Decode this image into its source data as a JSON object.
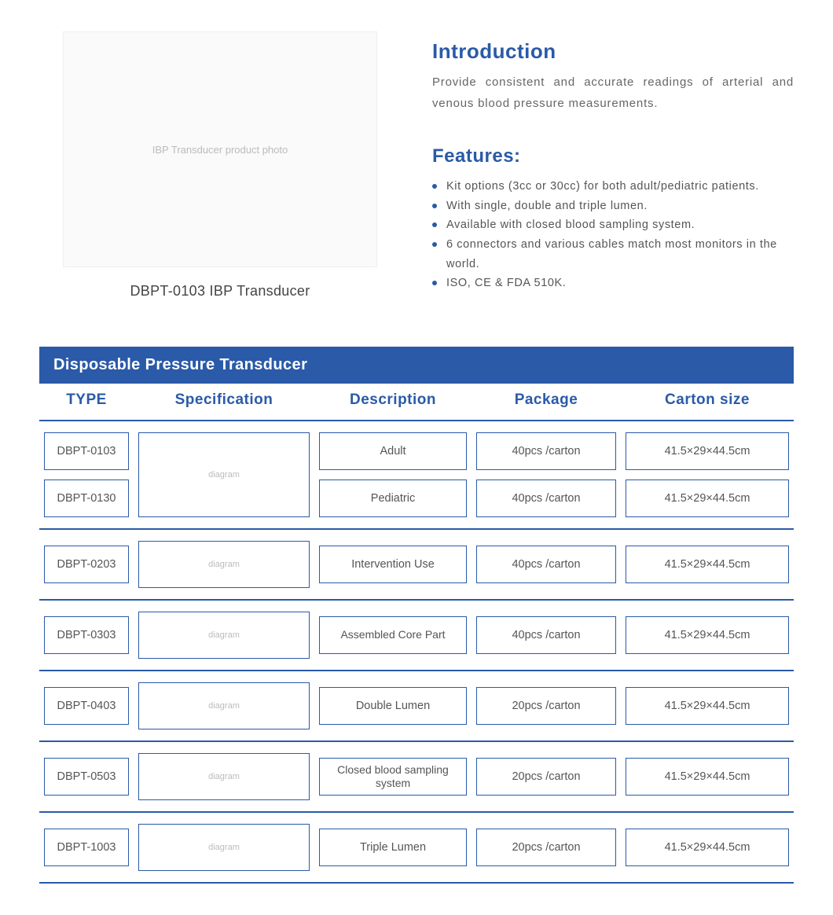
{
  "product": {
    "caption": "DBPT-0103 IBP Transducer",
    "image_alt": "IBP Transducer product photo"
  },
  "intro": {
    "heading": "Introduction",
    "body": "Provide consistent and accurate readings of arterial and venous blood pressure measurements."
  },
  "features": {
    "heading": "Features:",
    "items": [
      "Kit options (3cc or 30cc) for both adult/pediatric patients.",
      "With single, double and triple lumen.",
      "Available with closed blood sampling system.",
      "6 connectors and various cables match most monitors in the world.",
      "ISO, CE & FDA 510K."
    ]
  },
  "table": {
    "banner": "Disposable Pressure Transducer",
    "headers": {
      "type": "TYPE",
      "spec": "Specification",
      "desc": "Description",
      "package": "Package",
      "carton": "Carton  size"
    },
    "groups": [
      {
        "types": [
          "DBPT-0103",
          "DBPT-0130"
        ],
        "spec_alt": "diagram",
        "rows": [
          {
            "desc": "Adult",
            "package": "40pcs /carton",
            "carton": "41.5×29×44.5cm"
          },
          {
            "desc": "Pediatric",
            "package": "40pcs /carton",
            "carton": "41.5×29×44.5cm"
          }
        ]
      },
      {
        "types": [
          "DBPT-0203"
        ],
        "spec_alt": "diagram",
        "rows": [
          {
            "desc": "Intervention Use",
            "package": "40pcs /carton",
            "carton": "41.5×29×44.5cm"
          }
        ]
      },
      {
        "types": [
          "DBPT-0303"
        ],
        "spec_alt": "diagram",
        "rows": [
          {
            "desc": "Assembled Core Part",
            "package": "40pcs /carton",
            "carton": "41.5×29×44.5cm"
          }
        ]
      },
      {
        "types": [
          "DBPT-0403"
        ],
        "spec_alt": "diagram",
        "rows": [
          {
            "desc": "Double Lumen",
            "package": "20pcs /carton",
            "carton": "41.5×29×44.5cm"
          }
        ]
      },
      {
        "types": [
          "DBPT-0503"
        ],
        "spec_alt": "diagram",
        "rows": [
          {
            "desc": "Closed blood sampling system",
            "package": "20pcs /carton",
            "carton": "41.5×29×44.5cm"
          }
        ]
      },
      {
        "types": [
          "DBPT-1003"
        ],
        "spec_alt": "diagram",
        "rows": [
          {
            "desc": "Triple Lumen",
            "package": "20pcs /carton",
            "carton": "41.5×29×44.5cm"
          }
        ]
      }
    ]
  },
  "colors": {
    "brand_blue": "#2a5aa8",
    "text_body": "#555555",
    "background": "#ffffff"
  }
}
